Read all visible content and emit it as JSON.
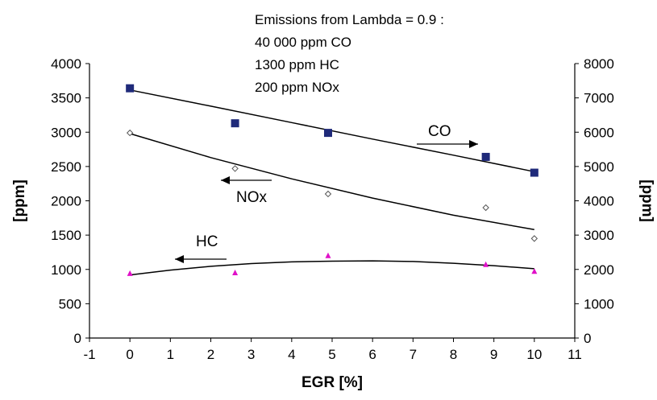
{
  "chart_data": {
    "type": "scatter",
    "note": [
      "Emissions from Lambda = 0.9 :",
      "40 000 ppm CO",
      "1300 ppm HC",
      "200 ppm NOx"
    ],
    "xlabel": "EGR [%]",
    "ylabel_left": "[ppm]",
    "ylabel_right": "[ppm]",
    "xlim": [
      -1,
      11
    ],
    "xticks": [
      -1,
      0,
      1,
      2,
      3,
      4,
      5,
      6,
      7,
      8,
      9,
      10,
      11
    ],
    "ylim_left": [
      0,
      4000
    ],
    "yticks_left": [
      0,
      500,
      1000,
      1500,
      2000,
      2500,
      3000,
      3500,
      4000
    ],
    "ylim_right": [
      0,
      8000
    ],
    "yticks_right": [
      0,
      1000,
      2000,
      3000,
      4000,
      5000,
      6000,
      7000,
      8000
    ],
    "grid": false,
    "series": [
      {
        "name": "CO",
        "axis": "right",
        "marker": "square",
        "color": "#1f2a7a",
        "x": [
          0,
          2.6,
          4.9,
          8.8,
          10
        ],
        "y": [
          7280,
          6260,
          5980,
          5280,
          4820
        ],
        "trend": [
          [
            0,
            7230
          ],
          [
            2,
            6760
          ],
          [
            4,
            6280
          ],
          [
            6,
            5800
          ],
          [
            8,
            5330
          ],
          [
            10,
            4850
          ]
        ],
        "arrow": "right"
      },
      {
        "name": "NOx",
        "axis": "left",
        "marker": "diamond",
        "color": "#555555",
        "x": [
          0,
          2.6,
          4.9,
          8.8,
          10
        ],
        "y": [
          2990,
          2470,
          2100,
          1900,
          1450
        ],
        "trend": [
          [
            0,
            2980
          ],
          [
            2,
            2630
          ],
          [
            4,
            2320
          ],
          [
            6,
            2040
          ],
          [
            8,
            1790
          ],
          [
            10,
            1580
          ]
        ],
        "arrow": "left"
      },
      {
        "name": "HC",
        "axis": "left",
        "marker": "triangle",
        "color": "#e010c8",
        "x": [
          0,
          2.6,
          4.9,
          8.8,
          10
        ],
        "y": [
          940,
          950,
          1200,
          1070,
          970
        ],
        "trend": [
          [
            0,
            920
          ],
          [
            1,
            990
          ],
          [
            2,
            1045
          ],
          [
            3,
            1085
          ],
          [
            4,
            1110
          ],
          [
            5,
            1120
          ],
          [
            6,
            1125
          ],
          [
            7,
            1115
          ],
          [
            8,
            1090
          ],
          [
            9,
            1055
          ],
          [
            10,
            1010
          ]
        ],
        "arrow": "left"
      }
    ]
  }
}
